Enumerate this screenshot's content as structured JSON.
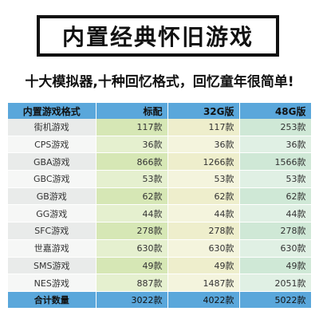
{
  "title": "内置经典怀旧游戏",
  "subtitle": "十大模拟器,十种回忆格式，回忆童年很简单!",
  "table": {
    "headers": [
      "内置游戏格式",
      "标配",
      "32G版",
      "48G版"
    ],
    "rows": [
      {
        "name": "街机游戏",
        "v1": "117款",
        "v2": "117款",
        "v3": "253款"
      },
      {
        "name": "CPS游戏",
        "v1": "36款",
        "v2": "36款",
        "v3": "36款"
      },
      {
        "name": "GBA游戏",
        "v1": "866款",
        "v2": "1266款",
        "v3": "1566款"
      },
      {
        "name": "GBC游戏",
        "v1": "53款",
        "v2": "53款",
        "v3": "53款"
      },
      {
        "name": "GB游戏",
        "v1": "62款",
        "v2": "62款",
        "v3": "62款"
      },
      {
        "name": "GG游戏",
        "v1": "44款",
        "v2": "44款",
        "v3": "44款"
      },
      {
        "name": "SFC游戏",
        "v1": "278款",
        "v2": "278款",
        "v3": "278款"
      },
      {
        "name": "世嘉游戏",
        "v1": "630款",
        "v2": "630款",
        "v3": "630款"
      },
      {
        "name": "SMS游戏",
        "v1": "49款",
        "v2": "49款",
        "v3": "49款"
      },
      {
        "name": "NES游戏",
        "v1": "887款",
        "v2": "1487款",
        "v3": "2051款"
      }
    ],
    "total": {
      "name": "合计数量",
      "v1": "3022款",
      "v2": "4022款",
      "v3": "5022款"
    }
  }
}
